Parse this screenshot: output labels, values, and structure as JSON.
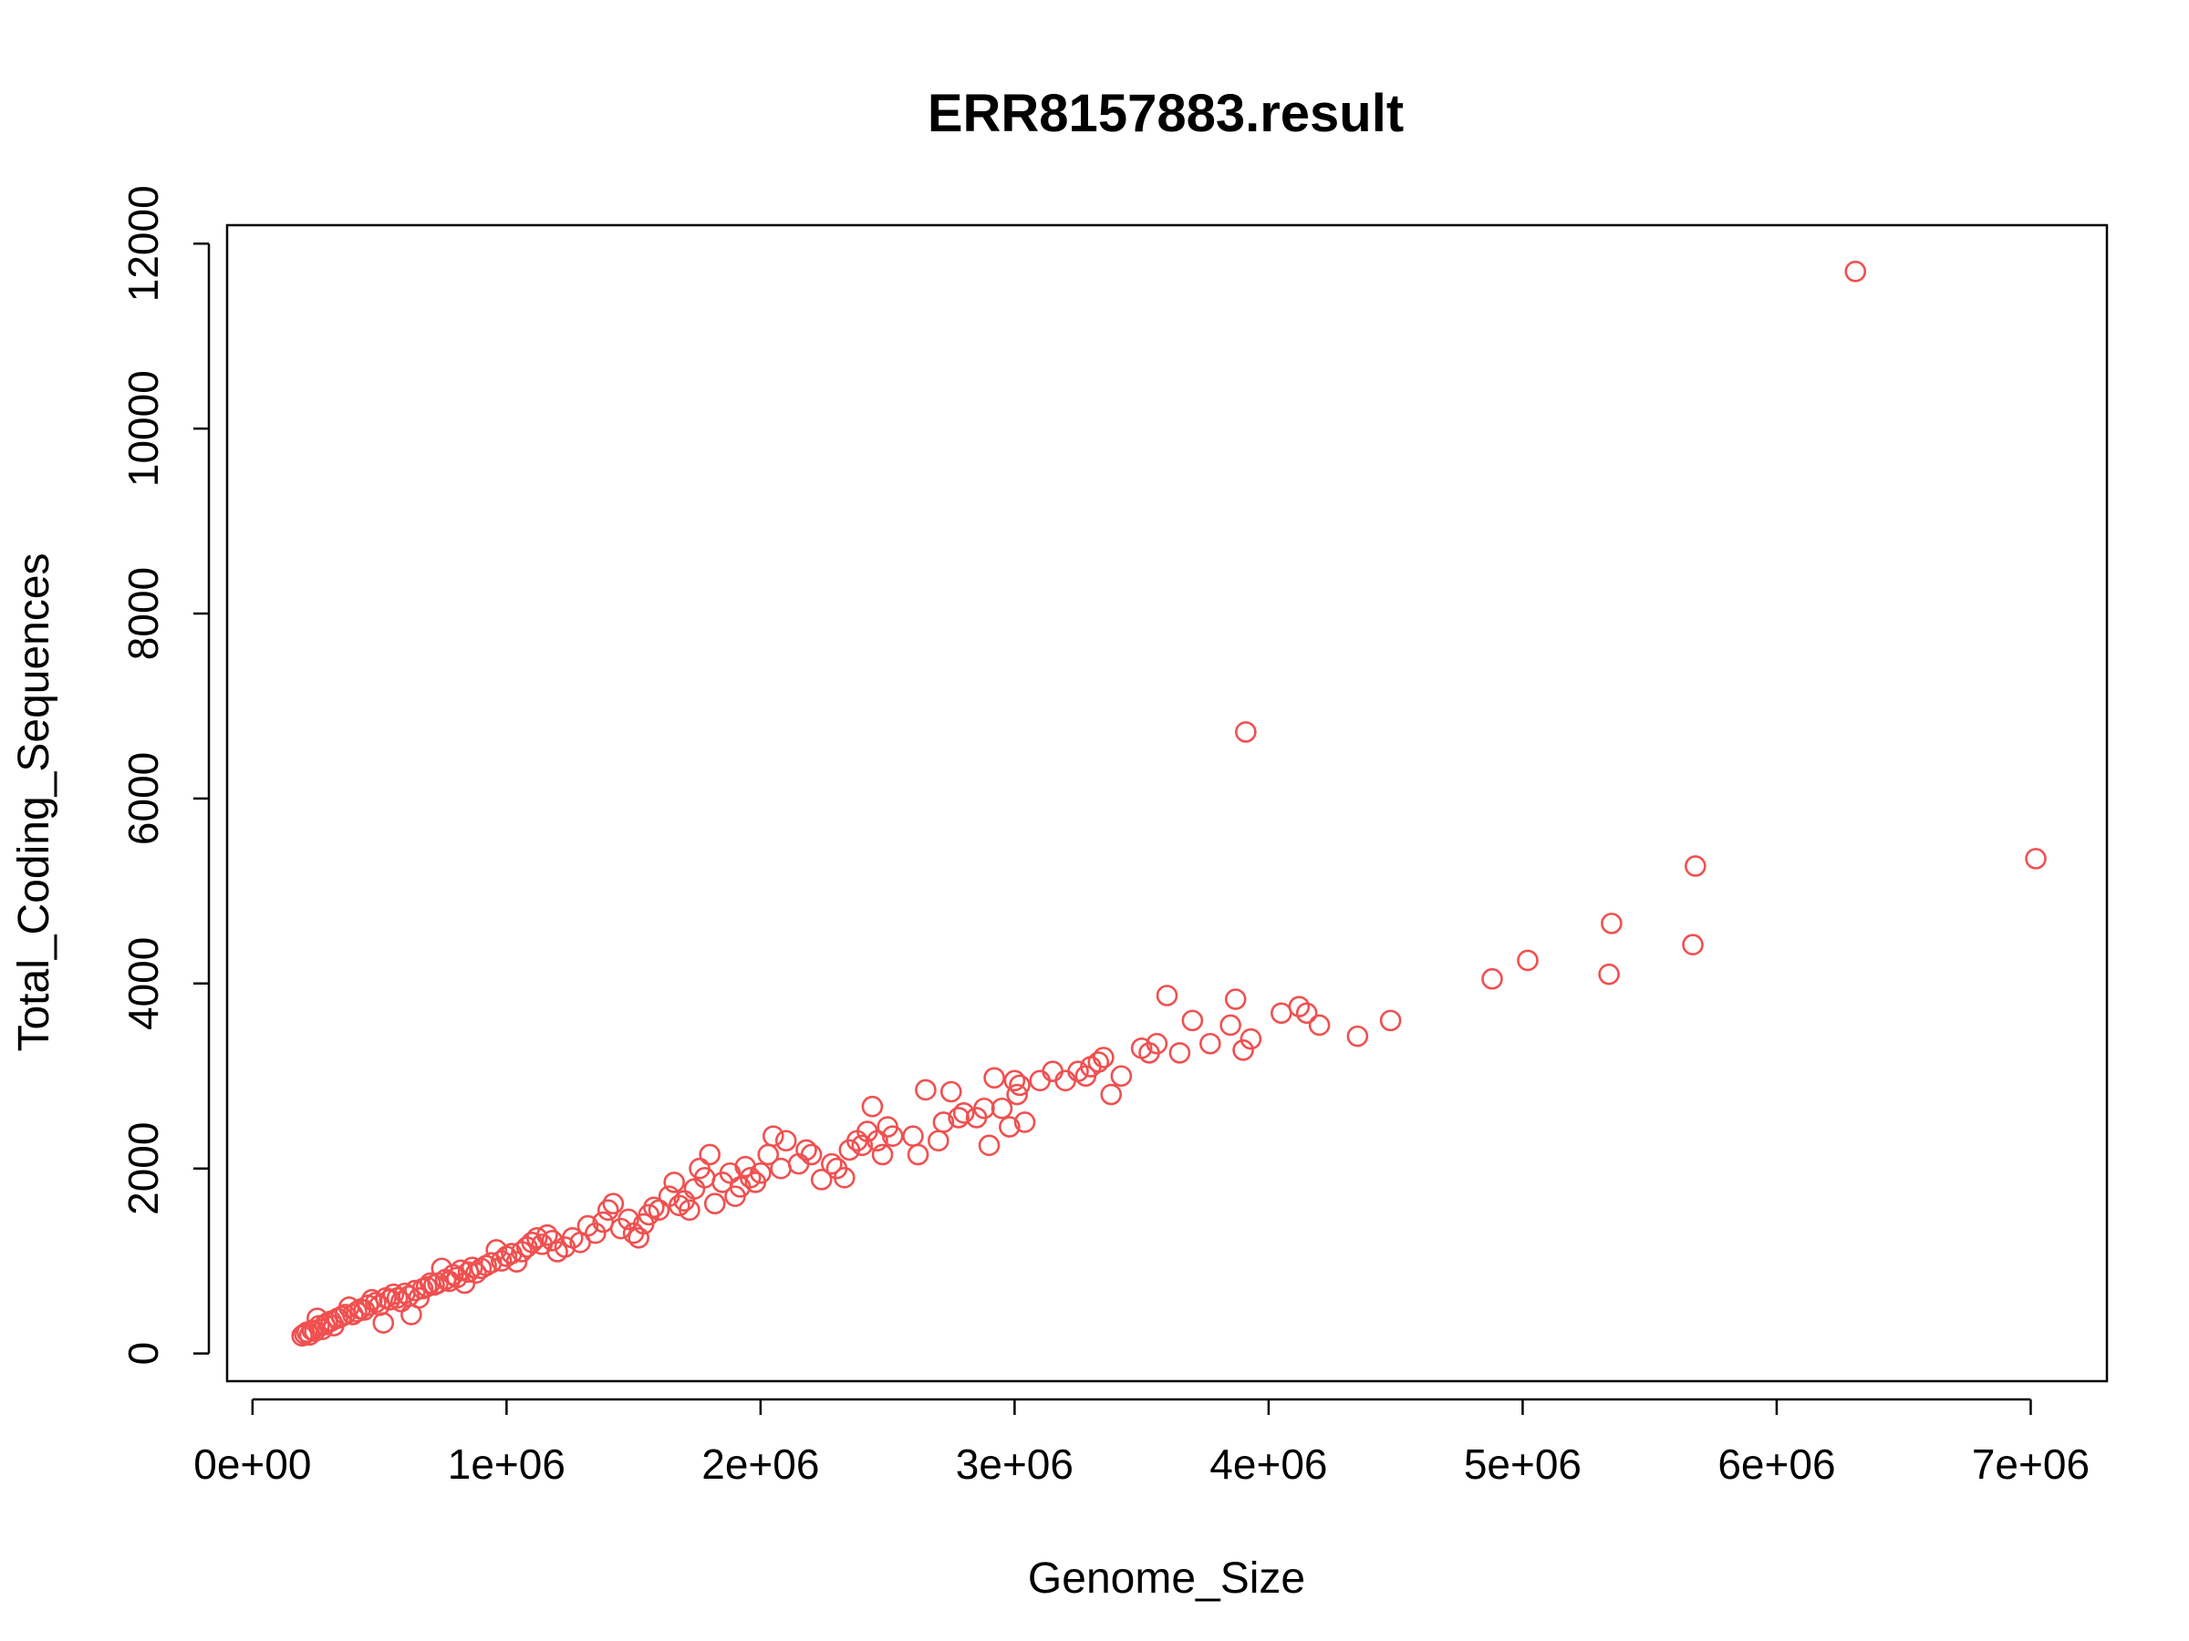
{
  "chart_data": {
    "type": "scatter",
    "title": "ERR8157883.result",
    "xlabel": "Genome_Size",
    "ylabel": "Total_Coding_Sequences",
    "xlim": [
      -100000,
      7300000
    ],
    "ylim": [
      -300,
      12200
    ],
    "x_ticks": [
      0,
      1000000,
      2000000,
      3000000,
      4000000,
      5000000,
      6000000,
      7000000
    ],
    "x_tick_labels": [
      "0e+00",
      "1e+06",
      "2e+06",
      "3e+06",
      "4e+06",
      "5e+06",
      "6e+06",
      "7e+06"
    ],
    "y_ticks": [
      0,
      2000,
      4000,
      6000,
      8000,
      10000,
      12000
    ],
    "y_tick_labels": [
      "0",
      "2000",
      "4000",
      "6000",
      "8000",
      "10000",
      "12000"
    ],
    "grid": false,
    "legend": "none",
    "point_color": "#F05050",
    "marker": "open-circle",
    "series": [
      {
        "points": [
          [
            195000,
            190
          ],
          [
            205000,
            210
          ],
          [
            215000,
            230
          ],
          [
            225000,
            200
          ],
          [
            235000,
            250
          ],
          [
            245000,
            240
          ],
          [
            255000,
            380
          ],
          [
            262000,
            300
          ],
          [
            275000,
            260
          ],
          [
            285000,
            310
          ],
          [
            295000,
            330
          ],
          [
            310000,
            350
          ],
          [
            320000,
            300
          ],
          [
            335000,
            380
          ],
          [
            350000,
            400
          ],
          [
            365000,
            420
          ],
          [
            380000,
            500
          ],
          [
            395000,
            420
          ],
          [
            410000,
            450
          ],
          [
            425000,
            480
          ],
          [
            440000,
            470
          ],
          [
            455000,
            520
          ],
          [
            470000,
            580
          ],
          [
            485000,
            550
          ],
          [
            500000,
            520
          ],
          [
            515000,
            330
          ],
          [
            525000,
            600
          ],
          [
            540000,
            580
          ],
          [
            555000,
            640
          ],
          [
            570000,
            600
          ],
          [
            585000,
            560
          ],
          [
            600000,
            650
          ],
          [
            615000,
            620
          ],
          [
            625000,
            420
          ],
          [
            640000,
            680
          ],
          [
            655000,
            600
          ],
          [
            670000,
            700
          ],
          [
            685000,
            720
          ],
          [
            700000,
            760
          ],
          [
            715000,
            740
          ],
          [
            730000,
            760
          ],
          [
            745000,
            920
          ],
          [
            760000,
            800
          ],
          [
            775000,
            780
          ],
          [
            790000,
            850
          ],
          [
            805000,
            820
          ],
          [
            820000,
            900
          ],
          [
            835000,
            760
          ],
          [
            850000,
            880
          ],
          [
            865000,
            930
          ],
          [
            880000,
            870
          ],
          [
            900000,
            920
          ],
          [
            920000,
            950
          ],
          [
            940000,
            980
          ],
          [
            960000,
            1120
          ],
          [
            980000,
            1000
          ],
          [
            1000000,
            1050
          ],
          [
            1020000,
            1080
          ],
          [
            1040000,
            990
          ],
          [
            1060000,
            1100
          ],
          [
            1080000,
            1150
          ],
          [
            1100000,
            1200
          ],
          [
            1120000,
            1250
          ],
          [
            1140000,
            1180
          ],
          [
            1160000,
            1280
          ],
          [
            1180000,
            1220
          ],
          [
            1200000,
            1100
          ],
          [
            1230000,
            1150
          ],
          [
            1260000,
            1250
          ],
          [
            1290000,
            1200
          ],
          [
            1320000,
            1380
          ],
          [
            1350000,
            1300
          ],
          [
            1380000,
            1420
          ],
          [
            1400000,
            1550
          ],
          [
            1420000,
            1620
          ],
          [
            1450000,
            1350
          ],
          [
            1480000,
            1450
          ],
          [
            1500000,
            1300
          ],
          [
            1520000,
            1250
          ],
          [
            1540000,
            1400
          ],
          [
            1560000,
            1500
          ],
          [
            1580000,
            1580
          ],
          [
            1600000,
            1550
          ],
          [
            1640000,
            1700
          ],
          [
            1660000,
            1850
          ],
          [
            1680000,
            1600
          ],
          [
            1700000,
            1650
          ],
          [
            1720000,
            1550
          ],
          [
            1740000,
            1780
          ],
          [
            1760000,
            2000
          ],
          [
            1780000,
            1900
          ],
          [
            1800000,
            2150
          ],
          [
            1820000,
            1620
          ],
          [
            1850000,
            1850
          ],
          [
            1880000,
            1950
          ],
          [
            1900000,
            1700
          ],
          [
            1920000,
            1800
          ],
          [
            1940000,
            2020
          ],
          [
            1960000,
            1900
          ],
          [
            1980000,
            1850
          ],
          [
            2000000,
            1950
          ],
          [
            2030000,
            2150
          ],
          [
            2050000,
            2350
          ],
          [
            2080000,
            2000
          ],
          [
            2100000,
            2300
          ],
          [
            2150000,
            2050
          ],
          [
            2180000,
            2200
          ],
          [
            2200000,
            2150
          ],
          [
            2240000,
            1880
          ],
          [
            2280000,
            2050
          ],
          [
            2300000,
            2000
          ],
          [
            2330000,
            1900
          ],
          [
            2350000,
            2200
          ],
          [
            2380000,
            2300
          ],
          [
            2400000,
            2250
          ],
          [
            2420000,
            2400
          ],
          [
            2440000,
            2670
          ],
          [
            2460000,
            2300
          ],
          [
            2480000,
            2150
          ],
          [
            2500000,
            2450
          ],
          [
            2520000,
            2350
          ],
          [
            2600000,
            2350
          ],
          [
            2620000,
            2150
          ],
          [
            2650000,
            2850
          ],
          [
            2700000,
            2300
          ],
          [
            2720000,
            2500
          ],
          [
            2750000,
            2830
          ],
          [
            2780000,
            2550
          ],
          [
            2800000,
            2600
          ],
          [
            2850000,
            2550
          ],
          [
            2880000,
            2650
          ],
          [
            2900000,
            2250
          ],
          [
            2920000,
            2980
          ],
          [
            2950000,
            2650
          ],
          [
            2980000,
            2450
          ],
          [
            3000000,
            2950
          ],
          [
            3010000,
            2800
          ],
          [
            3020000,
            2900
          ],
          [
            3040000,
            2500
          ],
          [
            3100000,
            2950
          ],
          [
            3150000,
            3050
          ],
          [
            3200000,
            2950
          ],
          [
            3250000,
            3050
          ],
          [
            3280000,
            3000
          ],
          [
            3300000,
            3100
          ],
          [
            3330000,
            3150
          ],
          [
            3350000,
            3200
          ],
          [
            3380000,
            2800
          ],
          [
            3420000,
            3000
          ],
          [
            3500000,
            3300
          ],
          [
            3530000,
            3250
          ],
          [
            3560000,
            3350
          ],
          [
            3600000,
            3870
          ],
          [
            3650000,
            3250
          ],
          [
            3700000,
            3600
          ],
          [
            3770000,
            3350
          ],
          [
            3850000,
            3550
          ],
          [
            3870000,
            3830
          ],
          [
            3900000,
            3280
          ],
          [
            3910000,
            6720
          ],
          [
            3930000,
            3400
          ],
          [
            4050000,
            3680
          ],
          [
            4120000,
            3750
          ],
          [
            4150000,
            3680
          ],
          [
            4200000,
            3550
          ],
          [
            4350000,
            3430
          ],
          [
            4480000,
            3600
          ],
          [
            4880000,
            4050
          ],
          [
            5020000,
            4250
          ],
          [
            5340000,
            4100
          ],
          [
            5350000,
            4650
          ],
          [
            5670000,
            4420
          ],
          [
            5680000,
            5270
          ],
          [
            6310000,
            11700
          ],
          [
            7020000,
            5350
          ]
        ]
      }
    ]
  }
}
